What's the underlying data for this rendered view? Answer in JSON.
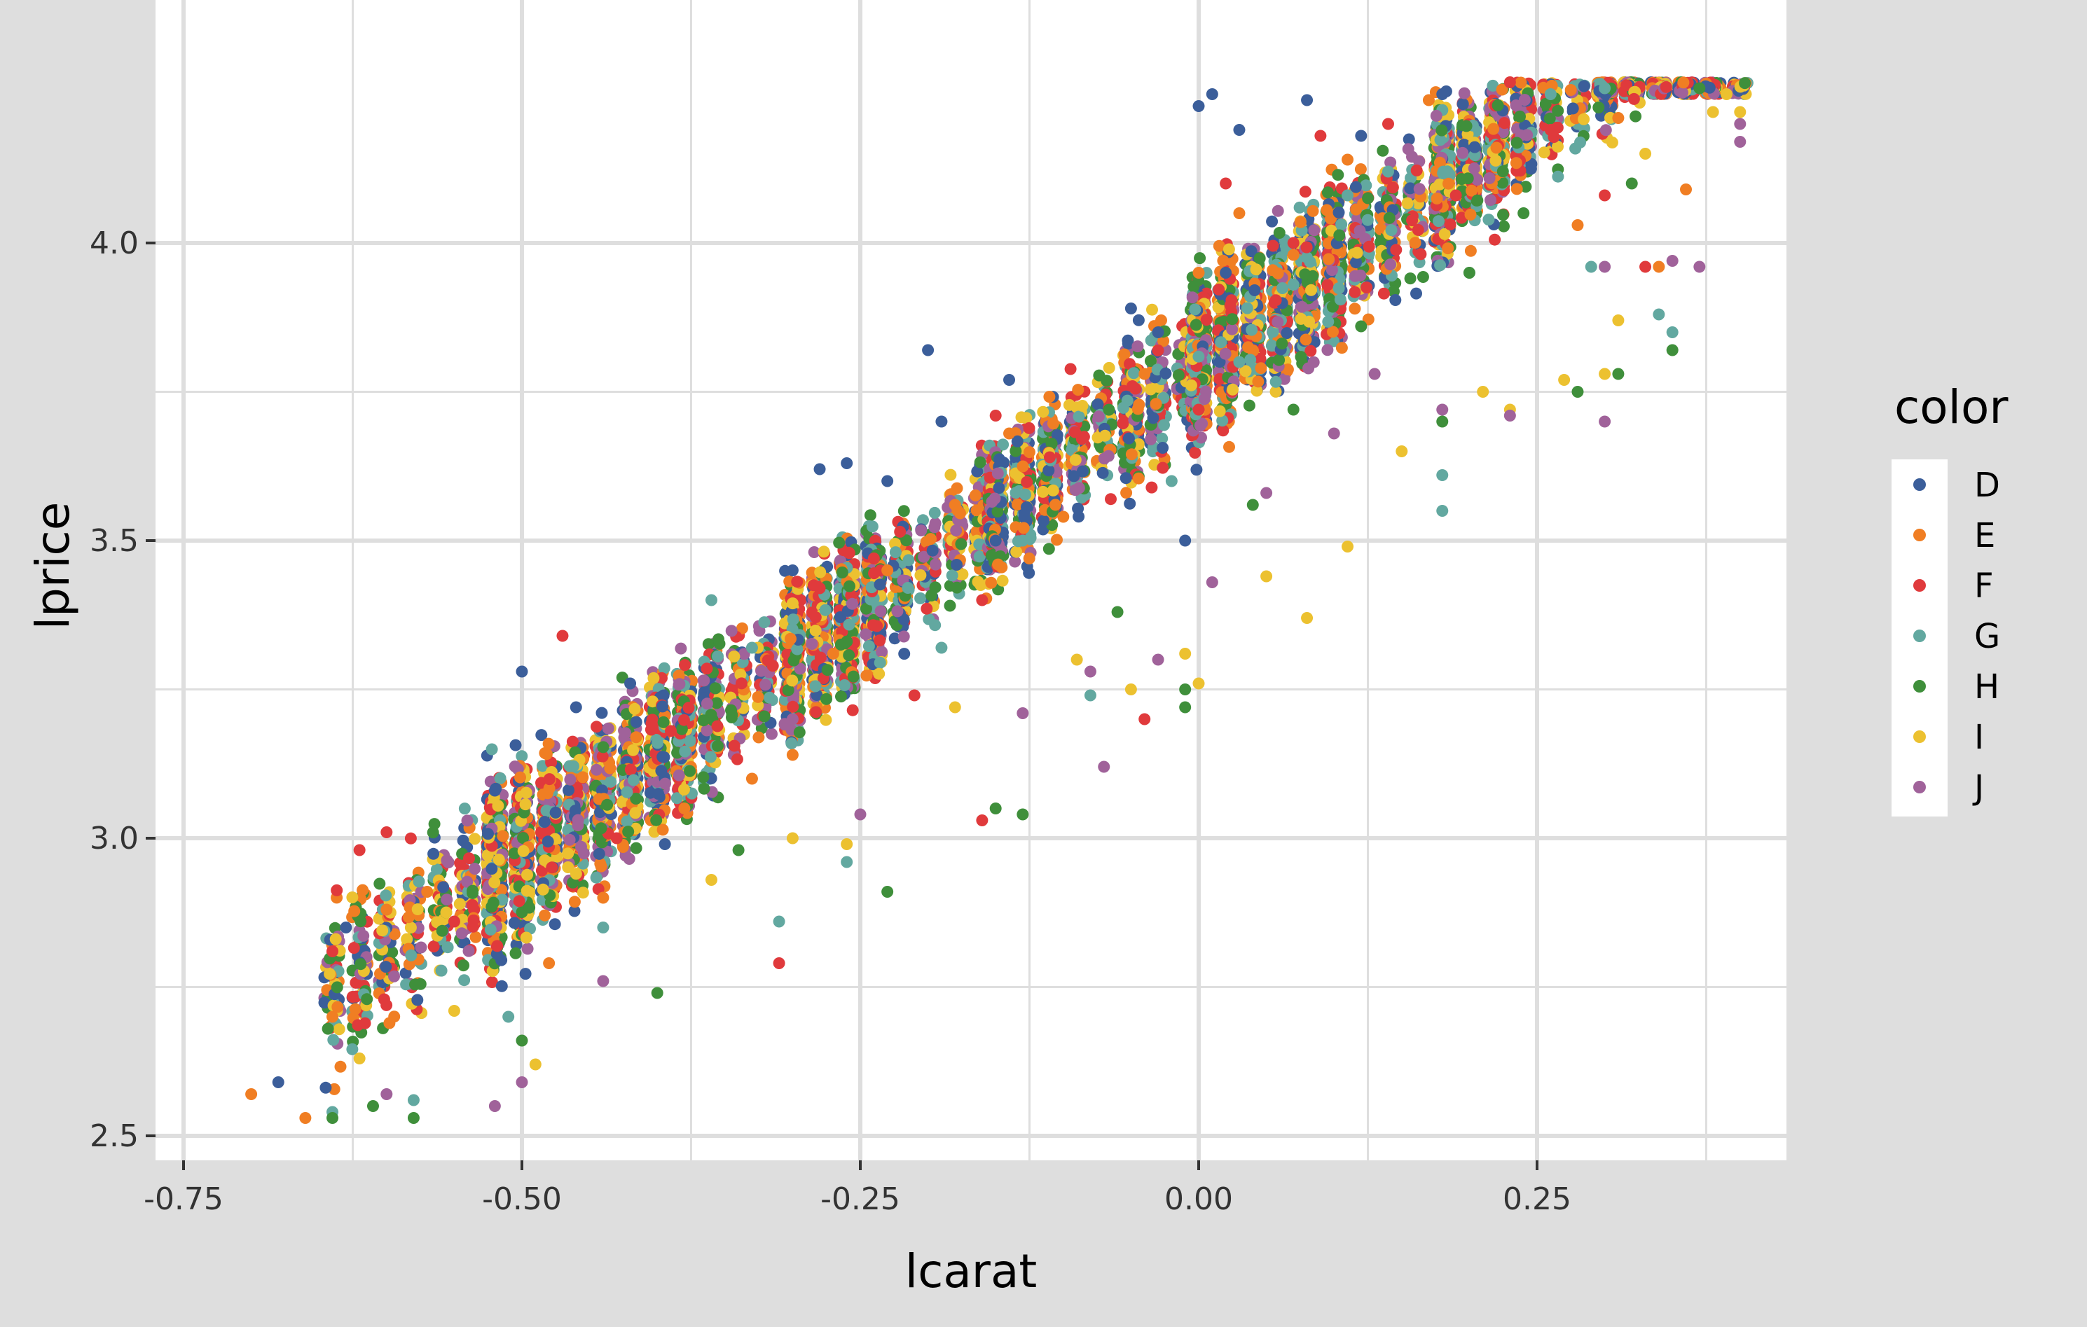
{
  "chart_data": {
    "type": "scatter",
    "title": "",
    "xlabel": "lcarat",
    "ylabel": "lprice",
    "xlim": [
      -0.79,
      0.43
    ],
    "ylim": [
      2.47,
      4.29
    ],
    "x_ticks": [
      -0.75,
      -0.5,
      -0.25,
      0.0,
      0.25
    ],
    "x_tick_labels": [
      "-0.75",
      "-0.50",
      "-0.25",
      "0.00",
      "0.25"
    ],
    "y_ticks": [
      2.5,
      3.0,
      3.5,
      4.0
    ],
    "y_tick_labels": [
      "2.5",
      "3.0",
      "3.5",
      "4.0"
    ],
    "grid": true,
    "panel_background": "#ffffff",
    "plot_background": "#dedede",
    "grid_color": "#dedede",
    "legend": {
      "title": "color",
      "position": "right",
      "entries": [
        "D",
        "E",
        "F",
        "G",
        "H",
        "I",
        "J"
      ]
    },
    "series": [
      {
        "name": "D",
        "color": "#3b5e9a",
        "points": [
          [
            -0.68,
            2.59
          ],
          [
            -0.63,
            2.85
          ],
          [
            -0.52,
            3.08
          ],
          [
            -0.5,
            3.28
          ],
          [
            -0.46,
            3.22
          ],
          [
            -0.42,
            3.26
          ],
          [
            -0.28,
            3.62
          ],
          [
            -0.26,
            3.63
          ],
          [
            -0.23,
            3.6
          ],
          [
            -0.2,
            3.82
          ],
          [
            -0.19,
            3.7
          ],
          [
            -0.14,
            3.77
          ],
          [
            -0.05,
            3.89
          ],
          [
            -0.03,
            3.85
          ],
          [
            0.0,
            4.23
          ],
          [
            0.01,
            4.25
          ],
          [
            0.03,
            4.19
          ],
          [
            0.08,
            4.24
          ],
          [
            0.12,
            4.18
          ],
          [
            0.18,
            4.25
          ],
          [
            -0.01,
            3.5
          ],
          [
            0.02,
            3.95
          ],
          [
            -0.3,
            3.45
          ],
          [
            -0.15,
            3.5
          ]
        ]
      },
      {
        "name": "E",
        "color": "#f07e23",
        "points": [
          [
            -0.7,
            2.57
          ],
          [
            -0.66,
            2.53
          ],
          [
            -0.64,
            2.7
          ],
          [
            -0.6,
            2.88
          ],
          [
            -0.57,
            2.91
          ],
          [
            -0.48,
            2.79
          ],
          [
            -0.44,
            2.9
          ],
          [
            -0.3,
            3.14
          ],
          [
            -0.27,
            3.31
          ],
          [
            -0.23,
            3.45
          ],
          [
            -0.18,
            3.56
          ],
          [
            -0.14,
            3.68
          ],
          [
            -0.1,
            3.54
          ],
          [
            -0.04,
            3.78
          ],
          [
            0.0,
            3.95
          ],
          [
            0.03,
            4.05
          ],
          [
            0.07,
            3.98
          ],
          [
            0.11,
            4.14
          ],
          [
            0.17,
            4.24
          ],
          [
            0.22,
            4.16
          ],
          [
            0.28,
            4.03
          ],
          [
            0.31,
            4.21
          ],
          [
            0.36,
            4.09
          ],
          [
            0.34,
            3.96
          ],
          [
            -0.38,
            3.05
          ],
          [
            -0.33,
            3.1
          ]
        ]
      },
      {
        "name": "F",
        "color": "#e03a3c",
        "points": [
          [
            -0.62,
            2.98
          ],
          [
            -0.6,
            3.01
          ],
          [
            -0.64,
            2.81
          ],
          [
            -0.55,
            2.86
          ],
          [
            -0.47,
            3.34
          ],
          [
            -0.43,
            3.0
          ],
          [
            -0.39,
            3.18
          ],
          [
            -0.31,
            2.79
          ],
          [
            -0.28,
            3.42
          ],
          [
            -0.24,
            3.47
          ],
          [
            -0.16,
            3.4
          ],
          [
            -0.15,
            3.71
          ],
          [
            -0.11,
            3.64
          ],
          [
            -0.04,
            3.2
          ],
          [
            0.0,
            3.72
          ],
          [
            0.02,
            4.1
          ],
          [
            0.07,
            4.0
          ],
          [
            0.09,
            4.18
          ],
          [
            0.14,
            4.2
          ],
          [
            0.19,
            4.08
          ],
          [
            0.23,
            4.27
          ],
          [
            0.26,
            4.19
          ],
          [
            0.3,
            4.08
          ],
          [
            0.33,
            3.96
          ],
          [
            -0.16,
            3.03
          ],
          [
            -0.21,
            3.24
          ]
        ]
      },
      {
        "name": "G",
        "color": "#62a8a0",
        "points": [
          [
            -0.64,
            2.54
          ],
          [
            -0.58,
            2.56
          ],
          [
            -0.51,
            2.7
          ],
          [
            -0.44,
            2.85
          ],
          [
            -0.36,
            3.4
          ],
          [
            -0.31,
            2.86
          ],
          [
            -0.26,
            2.96
          ],
          [
            -0.19,
            3.32
          ],
          [
            -0.13,
            3.5
          ],
          [
            -0.08,
            3.24
          ],
          [
            -0.02,
            3.6
          ],
          [
            0.03,
            3.8
          ],
          [
            0.07,
            3.93
          ],
          [
            0.11,
            4.08
          ],
          [
            0.14,
            4.12
          ],
          [
            0.18,
            3.61
          ],
          [
            0.18,
            3.55
          ],
          [
            0.2,
            3.95
          ],
          [
            0.26,
            4.25
          ],
          [
            0.3,
            4.26
          ],
          [
            0.34,
            3.88
          ],
          [
            0.35,
            3.85
          ],
          [
            0.29,
            3.96
          ],
          [
            -0.33,
            3.32
          ]
        ]
      },
      {
        "name": "H",
        "color": "#3f8f3b",
        "points": [
          [
            -0.64,
            2.53
          ],
          [
            -0.61,
            2.55
          ],
          [
            -0.58,
            2.53
          ],
          [
            -0.5,
            2.66
          ],
          [
            -0.4,
            2.74
          ],
          [
            -0.34,
            2.98
          ],
          [
            -0.23,
            2.91
          ],
          [
            -0.15,
            3.05
          ],
          [
            -0.13,
            3.04
          ],
          [
            -0.06,
            3.38
          ],
          [
            -0.01,
            3.22
          ],
          [
            -0.01,
            3.25
          ],
          [
            0.04,
            3.56
          ],
          [
            0.07,
            3.72
          ],
          [
            0.12,
            3.86
          ],
          [
            0.18,
            3.7
          ],
          [
            0.2,
            3.95
          ],
          [
            0.24,
            4.05
          ],
          [
            0.28,
            3.75
          ],
          [
            0.31,
            3.78
          ],
          [
            0.35,
            3.82
          ],
          [
            0.37,
            4.26
          ],
          [
            0.32,
            4.1
          ]
        ]
      },
      {
        "name": "I",
        "color": "#ecc130",
        "points": [
          [
            -0.62,
            2.63
          ],
          [
            -0.55,
            2.71
          ],
          [
            -0.49,
            2.62
          ],
          [
            -0.36,
            2.93
          ],
          [
            -0.3,
            3.0
          ],
          [
            -0.26,
            2.99
          ],
          [
            -0.18,
            3.22
          ],
          [
            -0.09,
            3.3
          ],
          [
            -0.05,
            3.25
          ],
          [
            -0.01,
            3.31
          ],
          [
            0.0,
            3.26
          ],
          [
            0.05,
            3.44
          ],
          [
            0.08,
            3.37
          ],
          [
            0.11,
            3.49
          ],
          [
            0.15,
            3.65
          ],
          [
            0.21,
            3.75
          ],
          [
            0.23,
            3.72
          ],
          [
            0.27,
            3.77
          ],
          [
            0.3,
            3.78
          ],
          [
            0.31,
            3.87
          ],
          [
            0.33,
            4.15
          ],
          [
            0.38,
            4.22
          ],
          [
            0.39,
            4.25
          ],
          [
            0.4,
            4.22
          ]
        ]
      },
      {
        "name": "J",
        "color": "#a0629a",
        "points": [
          [
            -0.6,
            2.57
          ],
          [
            -0.52,
            2.55
          ],
          [
            -0.5,
            2.59
          ],
          [
            -0.44,
            2.76
          ],
          [
            -0.3,
            3.2
          ],
          [
            -0.25,
            3.04
          ],
          [
            -0.13,
            3.21
          ],
          [
            -0.08,
            3.28
          ],
          [
            -0.07,
            3.12
          ],
          [
            -0.03,
            3.3
          ],
          [
            0.01,
            3.43
          ],
          [
            0.05,
            3.58
          ],
          [
            0.1,
            3.68
          ],
          [
            0.13,
            3.78
          ],
          [
            0.18,
            3.72
          ],
          [
            0.23,
            3.71
          ],
          [
            0.3,
            3.96
          ],
          [
            0.3,
            3.7
          ],
          [
            0.35,
            3.97
          ],
          [
            0.37,
            3.96
          ],
          [
            0.4,
            4.17
          ],
          [
            0.4,
            4.2
          ]
        ]
      }
    ]
  }
}
